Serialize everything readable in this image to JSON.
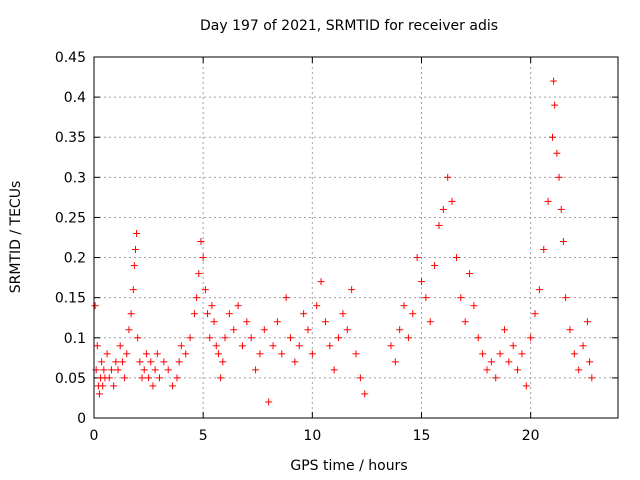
{
  "chart_data": {
    "type": "scatter",
    "title": "Day 197 of 2021, SRMTID for receiver adis",
    "xlabel": "GPS time / hours",
    "ylabel": "SRMTID / TECUs",
    "xlim": [
      0,
      24
    ],
    "ylim": [
      0,
      0.45
    ],
    "x_ticks": [
      0,
      5,
      10,
      15,
      20
    ],
    "x_tick_labels": [
      "0",
      "5",
      "10",
      "15",
      "20"
    ],
    "y_ticks": [
      0,
      0.05,
      0.1,
      0.15,
      0.2,
      0.25,
      0.3,
      0.35,
      0.4,
      0.45
    ],
    "y_tick_labels": [
      "0",
      "0.05",
      "0.1",
      "0.15",
      "0.2",
      "0.25",
      "0.3",
      "0.35",
      "0.4",
      "0.45"
    ],
    "grid": true,
    "marker": "+",
    "series": [
      {
        "name": "SRMTID",
        "color": "#ff0000",
        "points": [
          [
            0.05,
            0.14
          ],
          [
            0.1,
            0.06
          ],
          [
            0.15,
            0.09
          ],
          [
            0.2,
            0.04
          ],
          [
            0.25,
            0.03
          ],
          [
            0.3,
            0.05
          ],
          [
            0.35,
            0.07
          ],
          [
            0.4,
            0.04
          ],
          [
            0.45,
            0.06
          ],
          [
            0.5,
            0.05
          ],
          [
            0.6,
            0.08
          ],
          [
            0.7,
            0.05
          ],
          [
            0.8,
            0.06
          ],
          [
            0.9,
            0.04
          ],
          [
            1.0,
            0.07
          ],
          [
            1.1,
            0.06
          ],
          [
            1.2,
            0.09
          ],
          [
            1.3,
            0.07
          ],
          [
            1.4,
            0.05
          ],
          [
            1.5,
            0.08
          ],
          [
            1.6,
            0.11
          ],
          [
            1.7,
            0.13
          ],
          [
            1.8,
            0.16
          ],
          [
            1.85,
            0.19
          ],
          [
            1.9,
            0.21
          ],
          [
            1.95,
            0.23
          ],
          [
            2.0,
            0.1
          ],
          [
            2.1,
            0.07
          ],
          [
            2.2,
            0.05
          ],
          [
            2.3,
            0.06
          ],
          [
            2.4,
            0.08
          ],
          [
            2.5,
            0.05
          ],
          [
            2.6,
            0.07
          ],
          [
            2.7,
            0.04
          ],
          [
            2.8,
            0.06
          ],
          [
            2.9,
            0.08
          ],
          [
            3.0,
            0.05
          ],
          [
            3.2,
            0.07
          ],
          [
            3.4,
            0.06
          ],
          [
            3.6,
            0.04
          ],
          [
            3.8,
            0.05
          ],
          [
            3.9,
            0.07
          ],
          [
            4.0,
            0.09
          ],
          [
            4.2,
            0.08
          ],
          [
            4.4,
            0.1
          ],
          [
            4.6,
            0.13
          ],
          [
            4.7,
            0.15
          ],
          [
            4.8,
            0.18
          ],
          [
            4.9,
            0.22
          ],
          [
            5.0,
            0.2
          ],
          [
            5.1,
            0.16
          ],
          [
            5.2,
            0.13
          ],
          [
            5.3,
            0.1
          ],
          [
            5.4,
            0.14
          ],
          [
            5.5,
            0.12
          ],
          [
            5.6,
            0.09
          ],
          [
            5.7,
            0.08
          ],
          [
            5.8,
            0.05
          ],
          [
            5.9,
            0.07
          ],
          [
            6.0,
            0.1
          ],
          [
            6.2,
            0.13
          ],
          [
            6.4,
            0.11
          ],
          [
            6.6,
            0.14
          ],
          [
            6.8,
            0.09
          ],
          [
            7.0,
            0.12
          ],
          [
            7.2,
            0.1
          ],
          [
            7.4,
            0.06
          ],
          [
            7.6,
            0.08
          ],
          [
            7.8,
            0.11
          ],
          [
            8.0,
            0.02
          ],
          [
            8.2,
            0.09
          ],
          [
            8.4,
            0.12
          ],
          [
            8.6,
            0.08
          ],
          [
            8.8,
            0.15
          ],
          [
            9.0,
            0.1
          ],
          [
            9.2,
            0.07
          ],
          [
            9.4,
            0.09
          ],
          [
            9.6,
            0.13
          ],
          [
            9.8,
            0.11
          ],
          [
            10.0,
            0.08
          ],
          [
            10.2,
            0.14
          ],
          [
            10.4,
            0.17
          ],
          [
            10.6,
            0.12
          ],
          [
            10.8,
            0.09
          ],
          [
            11.0,
            0.06
          ],
          [
            11.2,
            0.1
          ],
          [
            11.4,
            0.13
          ],
          [
            11.6,
            0.11
          ],
          [
            11.8,
            0.16
          ],
          [
            12.0,
            0.08
          ],
          [
            12.2,
            0.05
          ],
          [
            12.4,
            0.03
          ],
          [
            13.6,
            0.09
          ],
          [
            13.8,
            0.07
          ],
          [
            14.0,
            0.11
          ],
          [
            14.2,
            0.14
          ],
          [
            14.4,
            0.1
          ],
          [
            14.6,
            0.13
          ],
          [
            14.8,
            0.2
          ],
          [
            15.0,
            0.17
          ],
          [
            15.2,
            0.15
          ],
          [
            15.4,
            0.12
          ],
          [
            15.6,
            0.19
          ],
          [
            15.8,
            0.24
          ],
          [
            16.0,
            0.26
          ],
          [
            16.2,
            0.3
          ],
          [
            16.4,
            0.27
          ],
          [
            16.6,
            0.2
          ],
          [
            16.8,
            0.15
          ],
          [
            17.0,
            0.12
          ],
          [
            17.2,
            0.18
          ],
          [
            17.4,
            0.14
          ],
          [
            17.6,
            0.1
          ],
          [
            17.8,
            0.08
          ],
          [
            18.0,
            0.06
          ],
          [
            18.2,
            0.07
          ],
          [
            18.4,
            0.05
          ],
          [
            18.6,
            0.08
          ],
          [
            18.8,
            0.11
          ],
          [
            19.0,
            0.07
          ],
          [
            19.2,
            0.09
          ],
          [
            19.4,
            0.06
          ],
          [
            19.6,
            0.08
          ],
          [
            19.8,
            0.04
          ],
          [
            20.0,
            0.1
          ],
          [
            20.2,
            0.13
          ],
          [
            20.4,
            0.16
          ],
          [
            20.6,
            0.21
          ],
          [
            20.8,
            0.27
          ],
          [
            21.0,
            0.35
          ],
          [
            21.05,
            0.42
          ],
          [
            21.1,
            0.39
          ],
          [
            21.2,
            0.33
          ],
          [
            21.3,
            0.3
          ],
          [
            21.4,
            0.26
          ],
          [
            21.5,
            0.22
          ],
          [
            21.6,
            0.15
          ],
          [
            21.8,
            0.11
          ],
          [
            22.0,
            0.08
          ],
          [
            22.2,
            0.06
          ],
          [
            22.4,
            0.09
          ],
          [
            22.6,
            0.12
          ],
          [
            22.7,
            0.07
          ],
          [
            22.8,
            0.05
          ]
        ]
      }
    ]
  }
}
